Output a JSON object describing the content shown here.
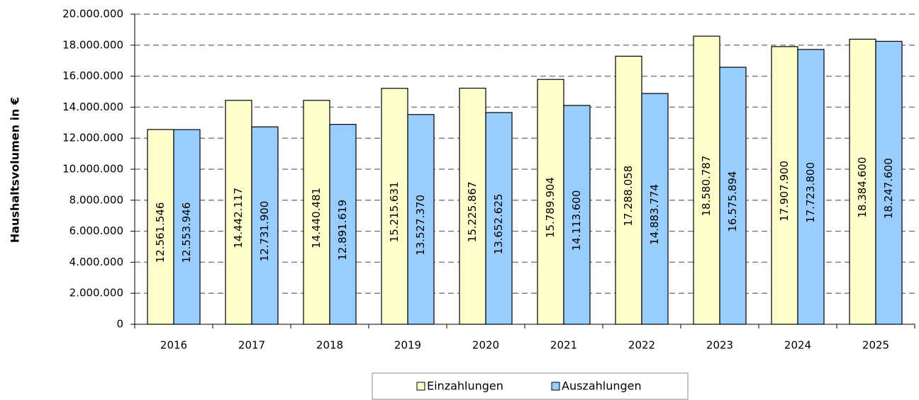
{
  "chart_data": {
    "type": "bar",
    "y_label": "Haushaltsvolumen in €",
    "categories": [
      "2016",
      "2017",
      "2018",
      "2019",
      "2020",
      "2021",
      "2022",
      "2023",
      "2024",
      "2025"
    ],
    "series": [
      {
        "name": "Einzahlungen",
        "color": "#ffffcc",
        "values": [
          12561546,
          14442117,
          14440481,
          15215631,
          15225867,
          15789904,
          17288058,
          18580787,
          17907900,
          18384600
        ],
        "value_labels": [
          "12.561.546",
          "14.442.117",
          "14.440.481",
          "15.215.631",
          "15.225.867",
          "15.789.904",
          "17.288.058",
          "18.580.787",
          "17.907.900",
          "18.384.600"
        ]
      },
      {
        "name": "Auszahlungen",
        "color": "#99ccff",
        "values": [
          12553946,
          12731900,
          12891619,
          13527370,
          13652625,
          14113600,
          14883774,
          16575894,
          17723800,
          18247600
        ],
        "value_labels": [
          "12.553.946",
          "12.731.900",
          "12.891.619",
          "13.527.370",
          "13.652.625",
          "14.113.600",
          "14.883.774",
          "16.575.894",
          "17.723.800",
          "18.247.600"
        ]
      }
    ],
    "ylim": [
      0,
      20000000
    ],
    "yticks": [
      0,
      {
        "value": 2000000,
        "label": "2.000.000"
      },
      {
        "value": 4000000,
        "label": "4.000.000"
      },
      {
        "value": 6000000,
        "label": "6.000.000"
      },
      {
        "value": 8000000,
        "label": "8.000.000"
      },
      {
        "value": 10000000,
        "label": "10.000.000"
      },
      {
        "value": 12000000,
        "label": "12.000.000"
      },
      {
        "value": 14000000,
        "label": "14.000.000"
      },
      {
        "value": 16000000,
        "label": "16.000.000"
      },
      {
        "value": 18000000,
        "label": "18.000.000"
      },
      {
        "value": 20000000,
        "label": "20.000.000"
      }
    ],
    "grid": true,
    "legend": "bottom"
  }
}
